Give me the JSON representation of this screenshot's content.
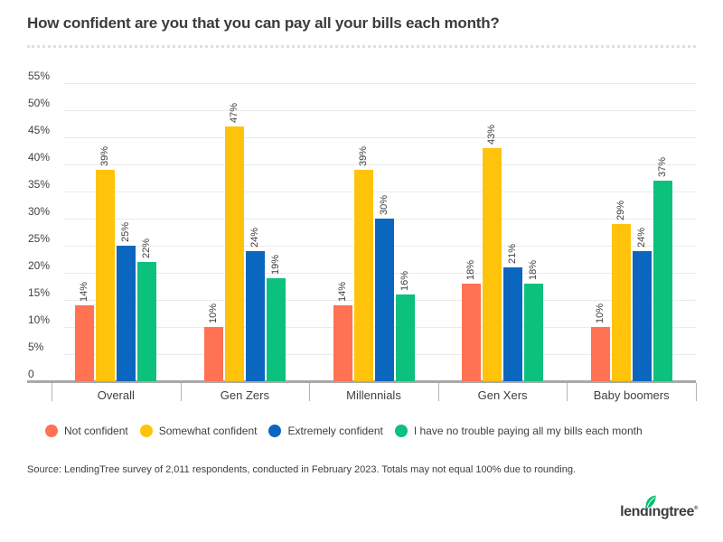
{
  "title": "How confident are you that you can pay all your bills each month?",
  "chart_data": {
    "type": "bar",
    "categories": [
      "Overall",
      "Gen Zers",
      "Millennials",
      "Gen Xers",
      "Baby boomers"
    ],
    "series": [
      {
        "name": "Not confident",
        "color": "#FF7253",
        "values": [
          14,
          10,
          14,
          18,
          10
        ]
      },
      {
        "name": "Somewhat confident",
        "color": "#FFC30B",
        "values": [
          39,
          47,
          39,
          43,
          29
        ]
      },
      {
        "name": "Extremely confident",
        "color": "#0A66BE",
        "values": [
          25,
          24,
          30,
          21,
          24
        ]
      },
      {
        "name": "I have no trouble paying all my bills each month",
        "color": "#0CC17C",
        "values": [
          22,
          19,
          16,
          18,
          37
        ]
      }
    ],
    "title": "How confident are you that you can pay all your bills each month?",
    "xlabel": "",
    "ylabel": "",
    "ylim": [
      0,
      55
    ],
    "ytick_step": 5,
    "ytick_labels": [
      "0",
      "5%",
      "10%",
      "15%",
      "20%",
      "25%",
      "30%",
      "35%",
      "40%",
      "45%",
      "50%",
      "55%"
    ],
    "grid": true,
    "legend_position": "bottom",
    "value_label_suffix": "%"
  },
  "source": "Source: LendingTree survey of 2,011 respondents, conducted in February 2023. Totals may not equal 100% due to rounding.",
  "logo": {
    "text": "lendingtree",
    "trademark": "®",
    "leaf_color": "#00C06E"
  }
}
